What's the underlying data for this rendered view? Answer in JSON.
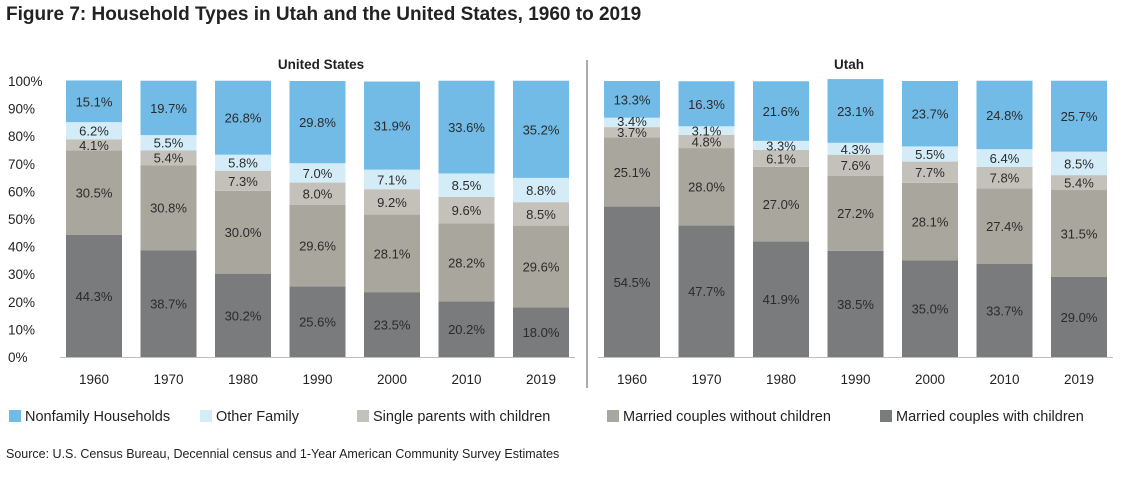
{
  "title": "Figure 7: Household Types in Utah and the United States, 1960 to 2019",
  "source": "Source: U.S. Census Bureau, Decennial census and 1-Year American Community Survey Estimates",
  "colors": {
    "Nonfamily Households": "#71bbe6",
    "Other Family": "#d3ecf7",
    "Single parents with children": "#c4c1bb",
    "Married couples without children": "#a9a69d",
    "Married couples with children": "#7a7b7d"
  },
  "chart_data": {
    "type": "bar",
    "stacked": true,
    "ylim": [
      0,
      100
    ],
    "yticks": [
      "0%",
      "10%",
      "20%",
      "30%",
      "40%",
      "50%",
      "60%",
      "70%",
      "80%",
      "90%",
      "100%"
    ],
    "legend": [
      "Nonfamily Households",
      "Other Family",
      "Single parents with children",
      "Married couples without children",
      "Married couples with children"
    ],
    "legend_position": "bottom",
    "panels": [
      {
        "name": "United States",
        "categories": [
          "1960",
          "1970",
          "1980",
          "1990",
          "2000",
          "2010",
          "2019"
        ],
        "series": [
          {
            "name": "Married couples with children",
            "values": [
              44.3,
              38.7,
              30.2,
              25.6,
              23.5,
              20.2,
              18.0
            ],
            "labels": [
              "44.3%",
              "38.7%",
              "30.2%",
              "25.6%",
              "23.5%",
              "20.2%",
              "18.0%"
            ]
          },
          {
            "name": "Married couples without children",
            "values": [
              30.5,
              30.8,
              30.0,
              29.6,
              28.1,
              28.2,
              29.6
            ],
            "labels": [
              "30.5%",
              "30.8%",
              "30.0%",
              "29.6%",
              "28.1%",
              "28.2%",
              "29.6%"
            ]
          },
          {
            "name": "Single parents with children",
            "values": [
              4.1,
              5.4,
              7.3,
              8.0,
              9.2,
              9.6,
              8.5
            ],
            "labels": [
              "4.1%",
              "5.4%",
              "7.3%",
              "8.0%",
              "9.2%",
              "9.6%",
              "8.5%"
            ]
          },
          {
            "name": "Other Family",
            "values": [
              6.2,
              5.5,
              5.8,
              7.0,
              7.1,
              8.5,
              8.8
            ],
            "labels": [
              "6.2%",
              "5.5%",
              "5.8%",
              "7.0%",
              "7.1%",
              "8.5%",
              "8.8%"
            ]
          },
          {
            "name": "Nonfamily Households",
            "values": [
              15.1,
              19.7,
              26.8,
              29.8,
              31.9,
              33.6,
              35.2
            ],
            "labels": [
              "15.1%",
              "19.7%",
              "26.8%",
              "29.8%",
              "31.9%",
              "33.6%",
              "35.2%"
            ]
          }
        ]
      },
      {
        "name": "Utah",
        "categories": [
          "1960",
          "1970",
          "1980",
          "1990",
          "2000",
          "2010",
          "2019"
        ],
        "series": [
          {
            "name": "Married couples with children",
            "values": [
              54.5,
              47.7,
              41.9,
              38.5,
              35.0,
              33.7,
              29.0
            ],
            "labels": [
              "54.5%",
              "47.7%",
              "41.9%",
              "38.5%",
              "35.0%",
              "33.7%",
              "29.0%"
            ]
          },
          {
            "name": "Married couples without children",
            "values": [
              25.1,
              28.0,
              27.0,
              27.2,
              28.1,
              27.4,
              31.5
            ],
            "labels": [
              "25.1%",
              "28.0%",
              "27.0%",
              "27.2%",
              "28.1%",
              "27.4%",
              "31.5%"
            ]
          },
          {
            "name": "Single parents with children",
            "values": [
              3.7,
              4.8,
              6.1,
              7.6,
              7.7,
              7.8,
              5.4
            ],
            "labels": [
              "3.7%",
              "4.8%",
              "6.1%",
              "7.6%",
              "7.7%",
              "7.8%",
              "5.4%"
            ]
          },
          {
            "name": "Other Family",
            "values": [
              3.4,
              3.1,
              3.3,
              4.3,
              5.5,
              6.4,
              8.5
            ],
            "labels": [
              "3.4%",
              "3.1%",
              "3.3%",
              "4.3%",
              "5.5%",
              "6.4%",
              "8.5%"
            ]
          },
          {
            "name": "Nonfamily Households",
            "values": [
              13.3,
              16.3,
              21.6,
              23.1,
              23.7,
              24.8,
              25.7
            ],
            "labels": [
              "13.3%",
              "16.3%",
              "21.6%",
              "23.1%",
              "23.7%",
              "24.8%",
              "25.7%"
            ]
          }
        ]
      }
    ]
  }
}
